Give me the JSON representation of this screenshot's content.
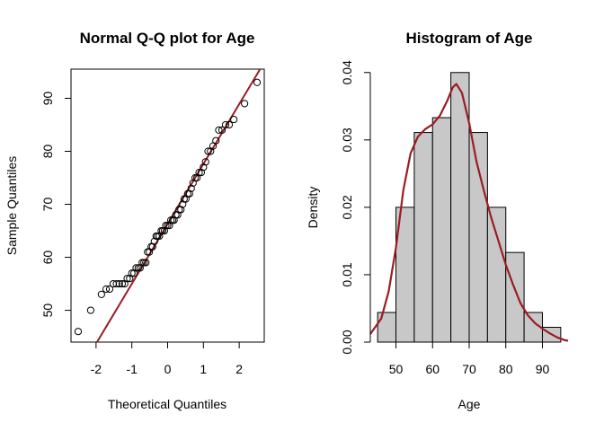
{
  "chart_data": [
    {
      "type": "scatter",
      "title": "Normal Q-Q plot for Age",
      "xlabel": "Theoretical Quantiles",
      "ylabel": "Sample Quantiles",
      "xlim": [
        -2.7,
        2.7
      ],
      "ylim": [
        44,
        95.5
      ],
      "xticks": [
        -2,
        -1,
        0,
        1,
        2
      ],
      "yticks": [
        50,
        60,
        70,
        80,
        90
      ],
      "reference_line": {
        "intercept": 66.3,
        "slope": 11.3,
        "color": "#9b1c22"
      },
      "point_style": {
        "stroke": "#000000",
        "fill": "none"
      },
      "points": [
        [
          -2.5,
          46
        ],
        [
          -2.15,
          50
        ],
        [
          -1.85,
          53
        ],
        [
          -1.72,
          54
        ],
        [
          -1.62,
          54
        ],
        [
          -1.52,
          55
        ],
        [
          -1.43,
          55
        ],
        [
          -1.35,
          55
        ],
        [
          -1.27,
          55
        ],
        [
          -1.2,
          55
        ],
        [
          -1.13,
          56
        ],
        [
          -1.06,
          56
        ],
        [
          -1.0,
          57
        ],
        [
          -0.94,
          57
        ],
        [
          -0.88,
          58
        ],
        [
          -0.82,
          58
        ],
        [
          -0.77,
          58
        ],
        [
          -0.71,
          59
        ],
        [
          -0.66,
          59
        ],
        [
          -0.61,
          59
        ],
        [
          -0.56,
          61
        ],
        [
          -0.51,
          61
        ],
        [
          -0.46,
          62
        ],
        [
          -0.42,
          62
        ],
        [
          -0.37,
          63
        ],
        [
          -0.32,
          64
        ],
        [
          -0.28,
          64
        ],
        [
          -0.23,
          64
        ],
        [
          -0.18,
          65
        ],
        [
          -0.14,
          65
        ],
        [
          -0.09,
          65
        ],
        [
          -0.05,
          66
        ],
        [
          0.0,
          66
        ],
        [
          0.05,
          66
        ],
        [
          0.09,
          67
        ],
        [
          0.14,
          67
        ],
        [
          0.18,
          67
        ],
        [
          0.23,
          68
        ],
        [
          0.28,
          68
        ],
        [
          0.32,
          69
        ],
        [
          0.37,
          69
        ],
        [
          0.42,
          70
        ],
        [
          0.46,
          71
        ],
        [
          0.51,
          71
        ],
        [
          0.56,
          72
        ],
        [
          0.61,
          72
        ],
        [
          0.66,
          73
        ],
        [
          0.71,
          74
        ],
        [
          0.77,
          75
        ],
        [
          0.82,
          75
        ],
        [
          0.88,
          76
        ],
        [
          0.94,
          76
        ],
        [
          1.0,
          77
        ],
        [
          1.06,
          78
        ],
        [
          1.13,
          80
        ],
        [
          1.2,
          80
        ],
        [
          1.27,
          81
        ],
        [
          1.35,
          82
        ],
        [
          1.43,
          84
        ],
        [
          1.52,
          84
        ],
        [
          1.62,
          85
        ],
        [
          1.72,
          85
        ],
        [
          1.85,
          86
        ],
        [
          2.15,
          89
        ],
        [
          2.5,
          93
        ]
      ]
    },
    {
      "type": "bar",
      "title": "Histogram of Age",
      "xlabel": "Age",
      "ylabel": "Density",
      "xlim": [
        43,
        97
      ],
      "ylim": [
        0,
        0.0405
      ],
      "xticks": [
        50,
        60,
        70,
        80,
        90
      ],
      "yticks": [
        0.0,
        0.01,
        0.02,
        0.03,
        0.04
      ],
      "ytick_labels": [
        "0.00",
        "0.01",
        "0.02",
        "0.03",
        "0.04"
      ],
      "bar_color": "#c8c8c8",
      "bins": [
        {
          "start": 45,
          "end": 50,
          "density": 0.0044
        },
        {
          "start": 50,
          "end": 55,
          "density": 0.02
        },
        {
          "start": 55,
          "end": 60,
          "density": 0.0311
        },
        {
          "start": 60,
          "end": 65,
          "density": 0.0333
        },
        {
          "start": 65,
          "end": 70,
          "density": 0.04
        },
        {
          "start": 70,
          "end": 75,
          "density": 0.0311
        },
        {
          "start": 75,
          "end": 80,
          "density": 0.02
        },
        {
          "start": 80,
          "end": 85,
          "density": 0.0133
        },
        {
          "start": 85,
          "end": 90,
          "density": 0.0044
        },
        {
          "start": 90,
          "end": 95,
          "density": 0.0022
        }
      ],
      "density_curve": {
        "color": "#9b1c22",
        "points": [
          [
            43,
            0.0012
          ],
          [
            46,
            0.0035
          ],
          [
            48,
            0.0075
          ],
          [
            50,
            0.014
          ],
          [
            52,
            0.0225
          ],
          [
            54,
            0.028
          ],
          [
            56,
            0.0305
          ],
          [
            58,
            0.0316
          ],
          [
            60,
            0.0323
          ],
          [
            62,
            0.0336
          ],
          [
            64,
            0.0358
          ],
          [
            65.5,
            0.0378
          ],
          [
            66.5,
            0.0383
          ],
          [
            68,
            0.037
          ],
          [
            70,
            0.0325
          ],
          [
            72,
            0.0268
          ],
          [
            74,
            0.0225
          ],
          [
            76,
            0.0185
          ],
          [
            78,
            0.015
          ],
          [
            80,
            0.0115
          ],
          [
            82,
            0.0085
          ],
          [
            84,
            0.0058
          ],
          [
            86,
            0.004
          ],
          [
            88,
            0.0028
          ],
          [
            90,
            0.002
          ],
          [
            92,
            0.0013
          ],
          [
            94,
            0.0007
          ],
          [
            96,
            0.0003
          ],
          [
            97,
            0.0002
          ]
        ]
      }
    }
  ]
}
